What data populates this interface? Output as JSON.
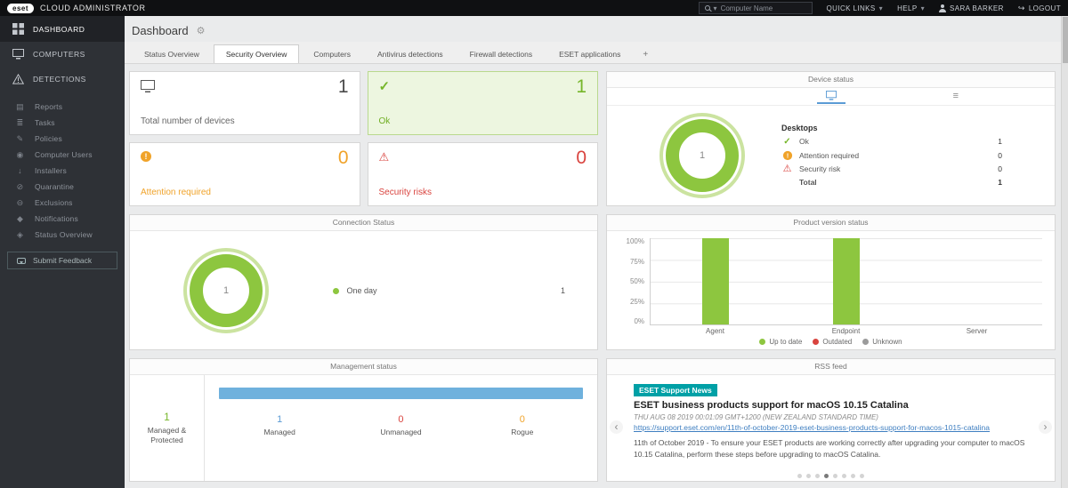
{
  "topbar": {
    "logo_text": "eset",
    "brand": "CLOUD ADMINISTRATOR",
    "search_placeholder": "Computer Name",
    "quick_links": "QUICK LINKS",
    "help": "HELP",
    "user": "SARA BARKER",
    "logout": "LOGOUT"
  },
  "sidebar": {
    "active_index": 0,
    "primary": [
      {
        "label": "DASHBOARD"
      },
      {
        "label": "COMPUTERS"
      },
      {
        "label": "DETECTIONS"
      }
    ],
    "secondary": [
      {
        "label": "Reports"
      },
      {
        "label": "Tasks"
      },
      {
        "label": "Policies"
      },
      {
        "label": "Computer Users"
      },
      {
        "label": "Installers"
      },
      {
        "label": "Quarantine"
      },
      {
        "label": "Exclusions"
      },
      {
        "label": "Notifications"
      },
      {
        "label": "Status Overview"
      }
    ],
    "feedback_label": "Submit Feedback"
  },
  "header": {
    "title": "Dashboard"
  },
  "tabs": {
    "active_index": 1,
    "items": [
      {
        "label": "Status Overview"
      },
      {
        "label": "Security Overview"
      },
      {
        "label": "Computers"
      },
      {
        "label": "Antivirus detections"
      },
      {
        "label": "Firewall detections"
      },
      {
        "label": "ESET applications"
      }
    ],
    "add_label": "+"
  },
  "cards": {
    "total_devices": {
      "value": "1",
      "label": "Total number of devices"
    },
    "ok": {
      "value": "1",
      "label": "Ok"
    },
    "attention": {
      "value": "0",
      "label": "Attention required"
    },
    "security_risks": {
      "value": "0",
      "label": "Security risks"
    }
  },
  "panels": {
    "device_status": {
      "title": "Device status",
      "donut_value": "1",
      "group_label": "Desktops",
      "rows": [
        {
          "label": "Ok",
          "value": "1"
        },
        {
          "label": "Attention required",
          "value": "0"
        },
        {
          "label": "Security risk",
          "value": "0"
        }
      ],
      "total_label": "Total",
      "total_value": "1"
    },
    "connection_status": {
      "title": "Connection Status",
      "donut_value": "1",
      "legend_label": "One day",
      "legend_value": "1",
      "dot_color": "#8dc63f"
    },
    "product_version": {
      "title": "Product version status",
      "chart": {
        "type": "bar",
        "categories": [
          "Agent",
          "Endpoint",
          "Server"
        ],
        "series": [
          {
            "name": "Up to date",
            "color": "#8dc63f",
            "values": [
              100,
              100,
              0
            ]
          },
          {
            "name": "Outdated",
            "color": "#d9443f",
            "values": [
              0,
              0,
              0
            ]
          },
          {
            "name": "Unknown",
            "color": "#9b9b9b",
            "values": [
              0,
              0,
              0
            ]
          }
        ],
        "yticks": [
          "100%",
          "75%",
          "50%",
          "25%",
          "0%"
        ],
        "ylim": [
          0,
          100
        ]
      }
    },
    "management_status": {
      "title": "Management status",
      "protected_value": "1",
      "protected_label": "Managed & Protected",
      "bar_color": "#6fb1dd",
      "bar_percent": 100,
      "stats": [
        {
          "value": "1",
          "label": "Managed",
          "color": "#5b9bd5"
        },
        {
          "value": "0",
          "label": "Unmanaged",
          "color": "#d9443f"
        },
        {
          "value": "0",
          "label": "Rogue",
          "color": "#f0a32a"
        }
      ]
    },
    "rss": {
      "title": "RSS feed",
      "badge": "ESET Support News",
      "badge_color": "#00a0a6",
      "headline": "ESET business products support for macOS 10.15 Catalina",
      "date": "THU AUG 08 2019 00:01:09 GMT+1200 (NEW ZEALAND STANDARD TIME)",
      "link": "https://support.eset.com/en/11th-of-october-2019-eset-business-products-support-for-macos-1015-catalina",
      "body": "11th of October 2019 - To ensure your ESET products are working correctly after upgrading your computer to macOS 10.15 Catalina, perform these steps before upgrading to macOS Catalina.",
      "dot_count": 8,
      "active_dot": 3
    }
  }
}
